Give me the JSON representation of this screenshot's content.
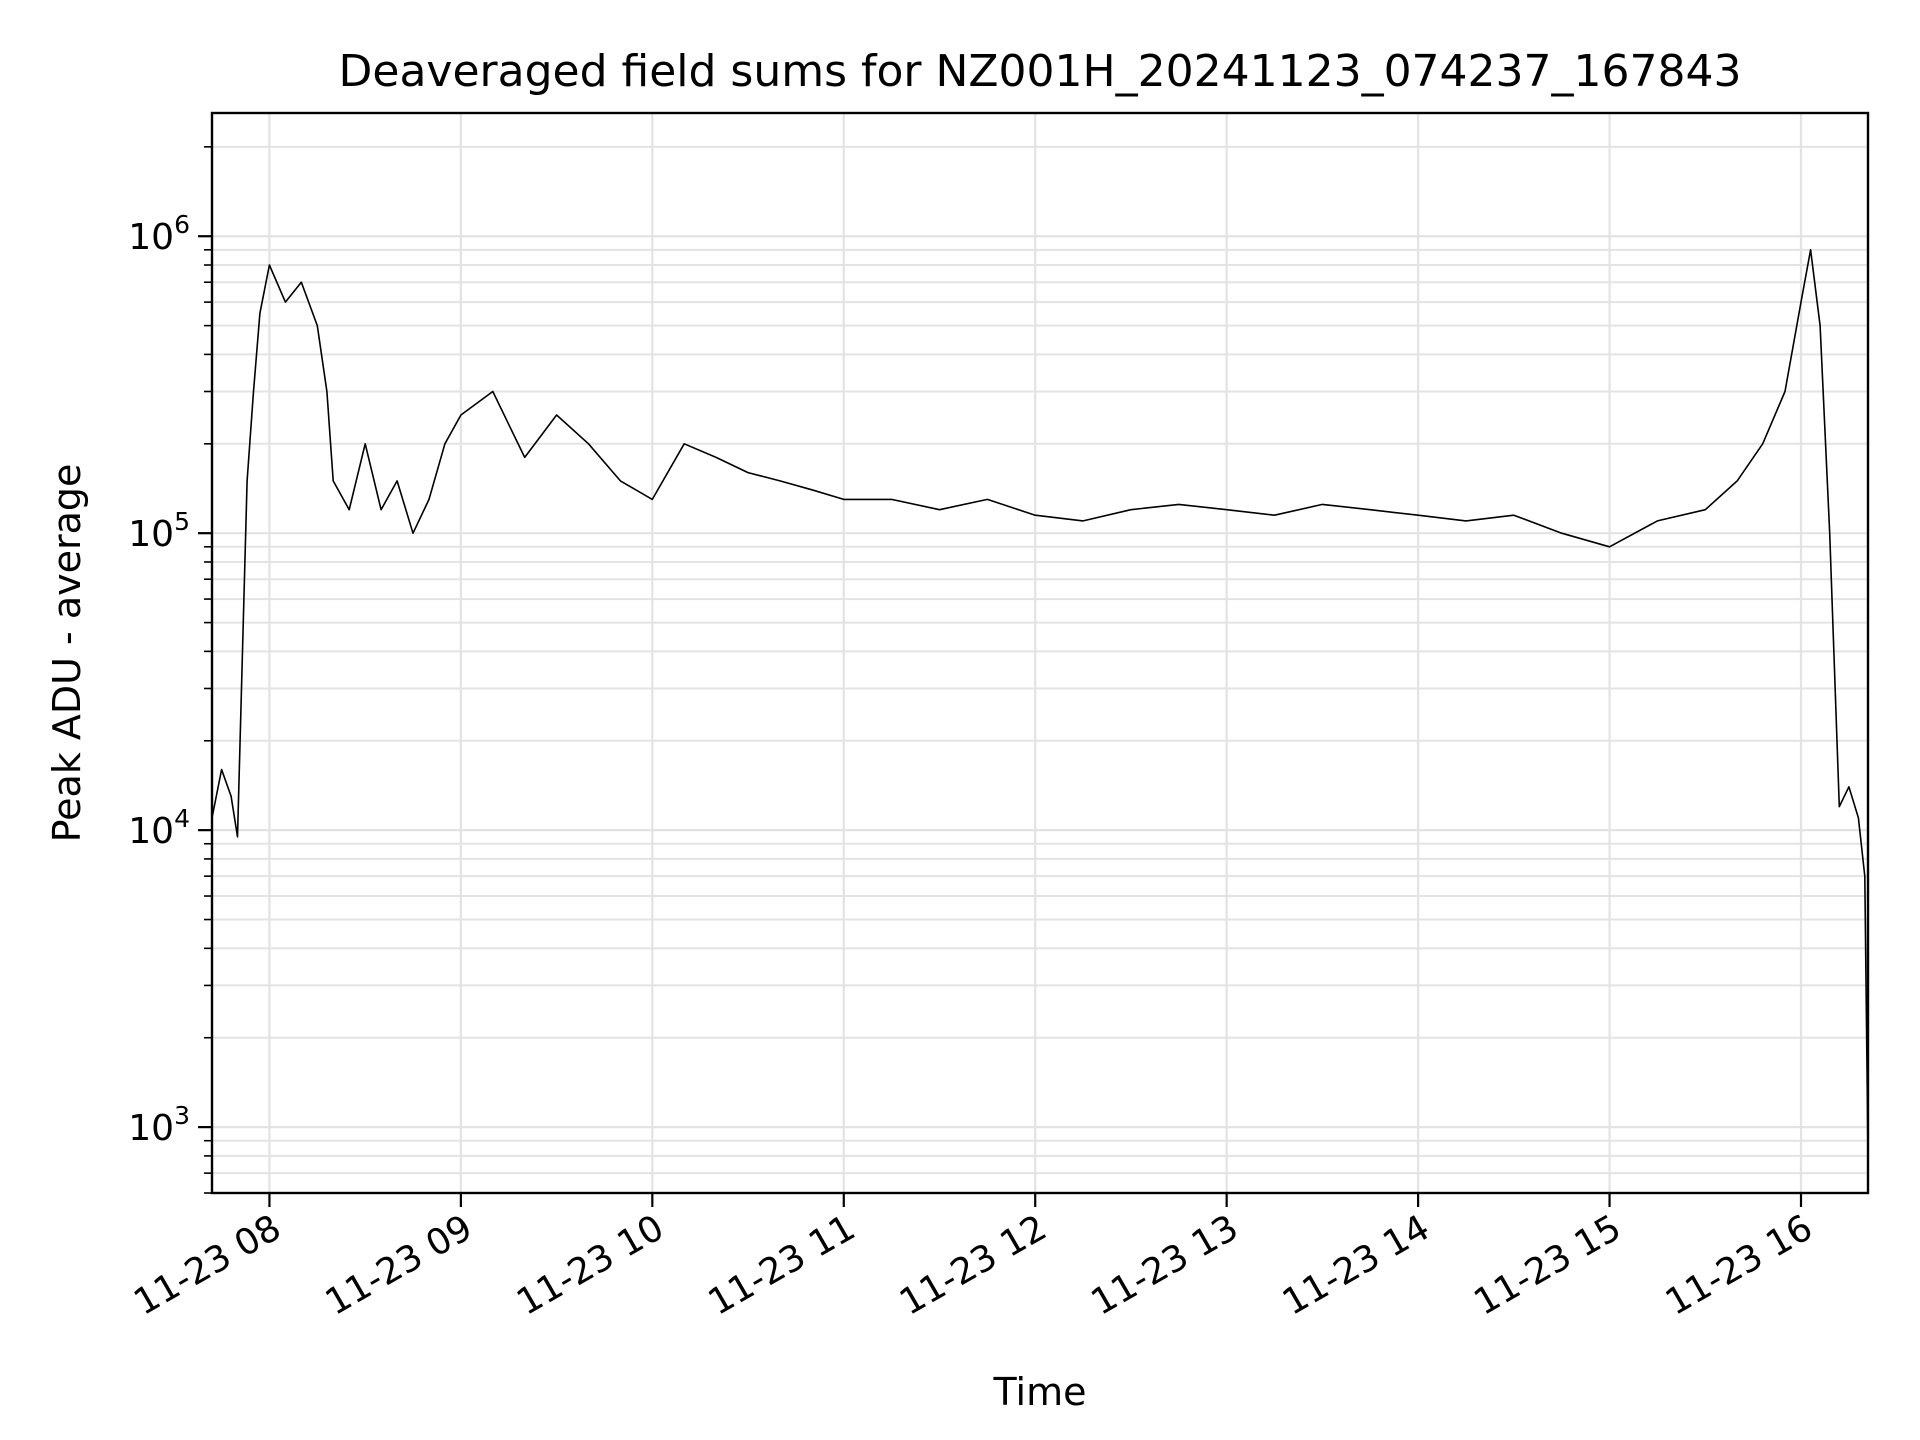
{
  "chart_data": {
    "type": "line",
    "title": "Deaveraged field sums for NZ001H_20241123_074237_167843",
    "xlabel": "Time",
    "ylabel": "Peak ADU - average",
    "yscale": "log",
    "xlim": [
      "2024-11-23T07:42",
      "2024-11-23T16:21"
    ],
    "ylim": [
      600,
      2600000
    ],
    "grid": "both",
    "x_ticks": [
      "2024-11-23T08:00",
      "2024-11-23T09:00",
      "2024-11-23T10:00",
      "2024-11-23T11:00",
      "2024-11-23T12:00",
      "2024-11-23T13:00",
      "2024-11-23T14:00",
      "2024-11-23T15:00",
      "2024-11-23T16:00"
    ],
    "x_tick_labels": [
      "11-23 08",
      "11-23 09",
      "11-23 10",
      "11-23 11",
      "11-23 12",
      "11-23 13",
      "11-23 14",
      "11-23 15",
      "11-23 16"
    ],
    "y_ticks": [
      1000,
      10000,
      100000,
      1000000
    ],
    "y_tick_labels": [
      {
        "base": "10",
        "exp": "3"
      },
      {
        "base": "10",
        "exp": "4"
      },
      {
        "base": "10",
        "exp": "5"
      },
      {
        "base": "10",
        "exp": "6"
      }
    ],
    "series": [
      {
        "color": "#000000",
        "x": [
          "2024-11-23T07:42",
          "2024-11-23T07:45",
          "2024-11-23T07:48",
          "2024-11-23T07:50",
          "2024-11-23T07:52",
          "2024-11-23T07:53",
          "2024-11-23T07:55",
          "2024-11-23T07:57",
          "2024-11-23T08:00",
          "2024-11-23T08:05",
          "2024-11-23T08:10",
          "2024-11-23T08:15",
          "2024-11-23T08:18",
          "2024-11-23T08:20",
          "2024-11-23T08:25",
          "2024-11-23T08:30",
          "2024-11-23T08:35",
          "2024-11-23T08:40",
          "2024-11-23T08:45",
          "2024-11-23T08:50",
          "2024-11-23T08:55",
          "2024-11-23T09:00",
          "2024-11-23T09:10",
          "2024-11-23T09:20",
          "2024-11-23T09:30",
          "2024-11-23T09:40",
          "2024-11-23T09:50",
          "2024-11-23T10:00",
          "2024-11-23T10:10",
          "2024-11-23T10:20",
          "2024-11-23T10:30",
          "2024-11-23T10:40",
          "2024-11-23T10:50",
          "2024-11-23T11:00",
          "2024-11-23T11:15",
          "2024-11-23T11:30",
          "2024-11-23T11:45",
          "2024-11-23T12:00",
          "2024-11-23T12:15",
          "2024-11-23T12:30",
          "2024-11-23T12:45",
          "2024-11-23T13:00",
          "2024-11-23T13:15",
          "2024-11-23T13:30",
          "2024-11-23T13:45",
          "2024-11-23T14:00",
          "2024-11-23T14:15",
          "2024-11-23T14:30",
          "2024-11-23T14:45",
          "2024-11-23T15:00",
          "2024-11-23T15:15",
          "2024-11-23T15:30",
          "2024-11-23T15:40",
          "2024-11-23T15:48",
          "2024-11-23T15:55",
          "2024-11-23T16:00",
          "2024-11-23T16:03",
          "2024-11-23T16:06",
          "2024-11-23T16:09",
          "2024-11-23T16:12",
          "2024-11-23T16:15",
          "2024-11-23T16:18",
          "2024-11-23T16:20",
          "2024-11-23T16:21"
        ],
        "y": [
          11000,
          16000,
          13000,
          9500,
          60000,
          150000,
          300000,
          550000,
          800000,
          600000,
          700000,
          500000,
          300000,
          150000,
          120000,
          200000,
          120000,
          150000,
          100000,
          130000,
          200000,
          250000,
          300000,
          180000,
          250000,
          200000,
          150000,
          130000,
          200000,
          180000,
          160000,
          150000,
          140000,
          130000,
          130000,
          120000,
          130000,
          115000,
          110000,
          120000,
          125000,
          120000,
          115000,
          125000,
          120000,
          115000,
          110000,
          115000,
          100000,
          90000,
          110000,
          120000,
          150000,
          200000,
          300000,
          600000,
          900000,
          500000,
          100000,
          12000,
          14000,
          11000,
          7000,
          800
        ]
      }
    ]
  }
}
